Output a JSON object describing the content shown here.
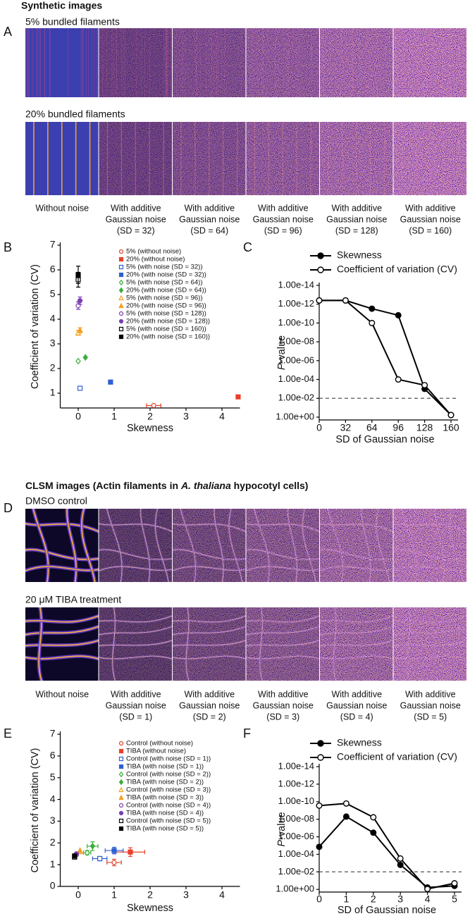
{
  "figure": {
    "panel_labels": [
      "A",
      "B",
      "C",
      "D",
      "E",
      "F"
    ],
    "synthetic": {
      "title": "Synthetic images",
      "rows": [
        "5% bundled filaments",
        "20% bundled filaments"
      ],
      "captions": [
        [
          "Without noise"
        ],
        [
          "With additive",
          "Gaussian noise",
          "(SD = 32)"
        ],
        [
          "With additive",
          "Gaussian noise",
          "(SD = 64)"
        ],
        [
          "With additive",
          "Gaussian noise",
          "(SD = 96)"
        ],
        [
          "With additive",
          "Gaussian noise",
          "(SD = 128)"
        ],
        [
          "With additive",
          "Gaussian noise",
          "(SD = 160)"
        ]
      ]
    },
    "clsm": {
      "title_parts": [
        "CLSM images (Actin filaments in ",
        "A. thaliana",
        " hypocotyl cells)"
      ],
      "rows": [
        "DMSO control",
        "20 μM TIBA treatment"
      ],
      "captions": [
        [
          "Without noise"
        ],
        [
          "With additive",
          "Gaussian noise",
          "(SD = 1)"
        ],
        [
          "With additive",
          "Gaussian noise",
          "(SD = 2)"
        ],
        [
          "With additive",
          "Gaussian noise",
          "(SD = 3)"
        ],
        [
          "With additive",
          "Gaussian noise",
          "(SD = 4)"
        ],
        [
          "With additive",
          "Gaussian noise",
          "(SD = 5)"
        ]
      ]
    }
  },
  "chart_data": [
    {
      "type": "scatter",
      "xlabel": "Skewness",
      "ylabel": "Coefficient of variation (CV)",
      "legend": "upper right",
      "xlim": [
        -0.5,
        4.5
      ],
      "xticks": [
        0,
        1,
        2,
        3,
        4
      ],
      "ylim": [
        0.4,
        7
      ],
      "yticks": [
        1,
        2,
        3,
        4,
        5,
        6,
        7
      ],
      "series": [
        {
          "name": "5% (without noise)",
          "color": "#e8402a",
          "marker": "circle",
          "filled": false,
          "x": [
            2.1
          ],
          "values": [
            0.5
          ],
          "xerr": [
            0.2
          ]
        },
        {
          "name": "20% (without noise)",
          "color": "#e8402a",
          "marker": "square",
          "filled": true,
          "x": [
            4.45
          ],
          "values": [
            0.85
          ]
        },
        {
          "name": "5% (with noise (SD = 32))",
          "color": "#2f5fd0",
          "marker": "square",
          "filled": false,
          "x": [
            0.05
          ],
          "values": [
            1.2
          ]
        },
        {
          "name": "20% (with noise (SD = 32))",
          "color": "#2f5fd0",
          "marker": "square",
          "filled": true,
          "x": [
            0.9
          ],
          "values": [
            1.45
          ],
          "xerr": [
            0.05
          ]
        },
        {
          "name": "5% (with noise (SD = 64))",
          "color": "#3cae3c",
          "marker": "diamond",
          "filled": false,
          "x": [
            0.0
          ],
          "values": [
            2.3
          ]
        },
        {
          "name": "20% (with noise (SD = 64))",
          "color": "#3cae3c",
          "marker": "diamond",
          "filled": true,
          "x": [
            0.2
          ],
          "values": [
            2.45
          ]
        },
        {
          "name": "5% (with noise (SD = 96))",
          "color": "#f5a020",
          "marker": "triangle",
          "filled": false,
          "x": [
            0.0
          ],
          "values": [
            3.45
          ],
          "yerr": [
            0.1
          ]
        },
        {
          "name": "20% (with noise (SD = 96))",
          "color": "#f5a020",
          "marker": "triangle",
          "filled": true,
          "x": [
            0.05
          ],
          "values": [
            3.55
          ],
          "yerr": [
            0.1
          ]
        },
        {
          "name": "5% (with noise (SD = 128))",
          "color": "#7b3fb0",
          "marker": "circle",
          "filled": false,
          "x": [
            0.0
          ],
          "values": [
            4.55
          ],
          "yerr": [
            0.15
          ]
        },
        {
          "name": "20% (with noise (SD = 128))",
          "color": "#7b3fb0",
          "marker": "circle",
          "filled": true,
          "x": [
            0.05
          ],
          "values": [
            4.75
          ],
          "yerr": [
            0.15
          ]
        },
        {
          "name": "5% (with noise (SD = 160))",
          "color": "#000000",
          "marker": "square",
          "filled": false,
          "x": [
            0.0
          ],
          "values": [
            5.6
          ],
          "yerr": [
            0.3
          ]
        },
        {
          "name": "20% (with noise (SD = 160))",
          "color": "#000000",
          "marker": "square",
          "filled": true,
          "x": [
            0.0
          ],
          "values": [
            5.8
          ],
          "yerr": [
            0.35
          ]
        }
      ]
    },
    {
      "type": "line",
      "legend": "top",
      "ylog": true,
      "xlabel": "SD of Gaussian noise",
      "ylabel_italic": "P",
      "ylabel": "-value",
      "x": [
        0,
        32,
        64,
        96,
        128,
        160
      ],
      "xlim": [
        0,
        160
      ],
      "xticks": [
        0,
        32,
        64,
        96,
        128,
        160
      ],
      "ylim": [
        2,
        1e-14
      ],
      "yticks": [
        {
          "value": 1,
          "label": "1.00e+00"
        },
        {
          "value": 0.01,
          "label": "1.00e-02"
        },
        {
          "value": 0.0001,
          "label": "1.00e-04"
        },
        {
          "value": 1e-06,
          "label": "1.00e-06"
        },
        {
          "value": 1e-08,
          "label": "1.00e-08"
        },
        {
          "value": 1e-10,
          "label": "1.00e-10"
        },
        {
          "value": 1e-12,
          "label": "1.00e-12"
        },
        {
          "value": 1e-14,
          "label": "1.00e-14"
        }
      ],
      "hline": 0.01,
      "series": [
        {
          "name": "Skewness",
          "color": "#000000",
          "marker": "circle",
          "filled": true,
          "values": [
            4e-13,
            4e-13,
            3e-12,
            1.5e-11,
            0.001,
            0.6
          ]
        },
        {
          "name": "Coefficient of variation (CV)",
          "color": "#000000",
          "marker": "circle",
          "filled": false,
          "values": [
            4e-13,
            4e-13,
            1e-10,
            0.0001,
            0.0004,
            0.6
          ]
        }
      ]
    },
    {
      "type": "scatter",
      "xlabel": "Skewness",
      "ylabel": "Coefficient of variation (CV)",
      "legend": "upper right",
      "xlim": [
        -0.5,
        4.5
      ],
      "xticks": [
        0,
        1,
        2,
        3,
        4
      ],
      "ylim": [
        0,
        7
      ],
      "yticks": [
        0,
        1,
        2,
        3,
        4,
        5,
        6,
        7
      ],
      "series": [
        {
          "name": "Control (without noise)",
          "color": "#e8402a",
          "marker": "circle",
          "filled": false,
          "x": [
            1.0
          ],
          "values": [
            1.1
          ],
          "xerr": [
            0.2
          ],
          "yerr": [
            0.15
          ]
        },
        {
          "name": "TIBA (without noise)",
          "color": "#e8402a",
          "marker": "square",
          "filled": true,
          "x": [
            1.45
          ],
          "values": [
            1.58
          ],
          "xerr": [
            0.4
          ],
          "yerr": [
            0.2
          ]
        },
        {
          "name": "Control (with noise (SD = 1))",
          "color": "#2f5fd0",
          "marker": "square",
          "filled": false,
          "x": [
            0.6
          ],
          "values": [
            1.28
          ],
          "xerr": [
            0.2
          ],
          "yerr": [
            0.1
          ]
        },
        {
          "name": "TIBA (with noise (SD = 1))",
          "color": "#2f5fd0",
          "marker": "square",
          "filled": true,
          "x": [
            1.0
          ],
          "values": [
            1.65
          ],
          "xerr": [
            0.25
          ],
          "yerr": [
            0.15
          ]
        },
        {
          "name": "Control (with noise (SD = 2))",
          "color": "#3cae3c",
          "marker": "diamond",
          "filled": false,
          "x": [
            0.25
          ],
          "values": [
            1.55
          ],
          "xerr": [
            0.1
          ],
          "yerr": [
            0.1
          ]
        },
        {
          "name": "TIBA (with noise (SD = 2))",
          "color": "#3cae3c",
          "marker": "diamond",
          "filled": true,
          "x": [
            0.4
          ],
          "values": [
            1.85
          ],
          "xerr": [
            0.15
          ],
          "yerr": [
            0.2
          ]
        },
        {
          "name": "Control (with noise (SD = 3))",
          "color": "#f5a020",
          "marker": "triangle",
          "filled": false,
          "x": [
            0.05
          ],
          "values": [
            1.6
          ]
        },
        {
          "name": "TIBA (with noise (SD = 3))",
          "color": "#f5a020",
          "marker": "triangle",
          "filled": true,
          "x": [
            0.05
          ],
          "values": [
            1.65
          ]
        },
        {
          "name": "Control (with noise (SD = 4))",
          "color": "#7b3fb0",
          "marker": "circle",
          "filled": false,
          "x": [
            -0.05
          ],
          "values": [
            1.45
          ]
        },
        {
          "name": "TIBA (with noise (SD = 4))",
          "color": "#7b3fb0",
          "marker": "circle",
          "filled": true,
          "x": [
            -0.05
          ],
          "values": [
            1.5
          ]
        },
        {
          "name": "Control (with noise (SD = 5))",
          "color": "#000000",
          "marker": "square",
          "filled": false,
          "x": [
            -0.1
          ],
          "values": [
            1.35
          ]
        },
        {
          "name": "TIBA (with noise (SD = 5))",
          "color": "#000000",
          "marker": "square",
          "filled": true,
          "x": [
            -0.1
          ],
          "values": [
            1.4
          ]
        }
      ]
    },
    {
      "type": "line",
      "legend": "top",
      "ylog": true,
      "xlabel": "SD of Gaussian noise",
      "ylabel_italic": "P",
      "ylabel": "-value",
      "x": [
        0,
        1,
        2,
        3,
        4,
        5
      ],
      "xlim": [
        0,
        5
      ],
      "xticks": [
        0,
        1,
        2,
        3,
        4,
        5
      ],
      "ylim": [
        2,
        1e-14
      ],
      "yticks": [
        {
          "value": 1,
          "label": "1.00e+00"
        },
        {
          "value": 0.01,
          "label": "1.00e-02"
        },
        {
          "value": 0.0001,
          "label": "1.00e-04"
        },
        {
          "value": 1e-06,
          "label": "1.00e-06"
        },
        {
          "value": 1e-08,
          "label": "1.00e-08"
        },
        {
          "value": 1e-10,
          "label": "1.00e-10"
        },
        {
          "value": 1e-12,
          "label": "1.00e-12"
        },
        {
          "value": 1e-14,
          "label": "1.00e-14"
        }
      ],
      "hline": 0.01,
      "series": [
        {
          "name": "Skewness",
          "color": "#000000",
          "marker": "circle",
          "filled": true,
          "values": [
            1.4e-05,
            5e-09,
            3.4e-07,
            0.0016,
            0.6,
            0.4
          ]
        },
        {
          "name": "Coefficient of variation (CV)",
          "color": "#000000",
          "marker": "circle",
          "filled": false,
          "values": [
            2.8e-10,
            1.6e-10,
            6e-09,
            0.0003,
            0.9,
            0.2
          ]
        }
      ]
    }
  ]
}
